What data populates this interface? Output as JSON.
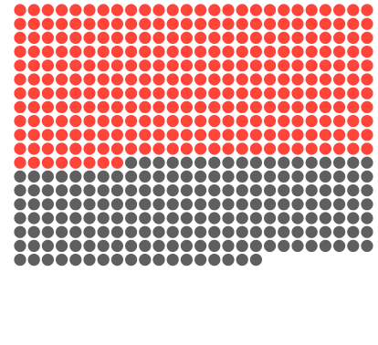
{
  "chart_data": {
    "type": "waffle",
    "columns": 26,
    "total": 486,
    "series": [
      {
        "value": 294,
        "color": "#ff453a"
      },
      {
        "value": 192,
        "color": "#5f5f61"
      }
    ]
  }
}
